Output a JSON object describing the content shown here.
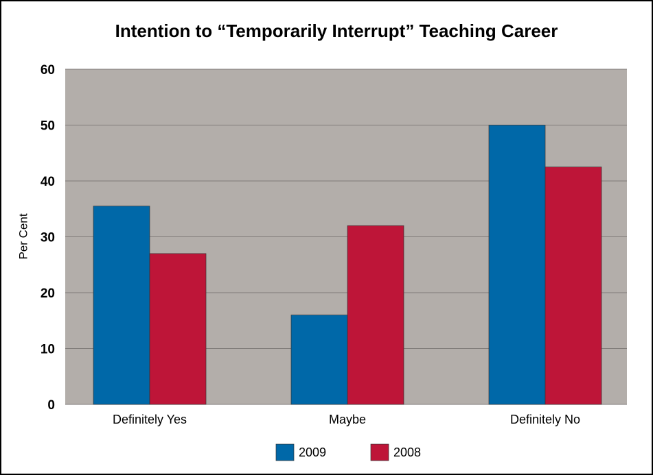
{
  "chart_data": {
    "type": "bar",
    "title": "Intention to “Temporarily Interrupt” Teaching Career",
    "ylabel": "Per Cent",
    "categories": [
      "Definitely Yes",
      "Maybe",
      "Definitely No"
    ],
    "series": [
      {
        "name": "2009",
        "color": "#0068a8",
        "values": [
          35.5,
          16,
          50
        ]
      },
      {
        "name": "2008",
        "color": "#be1538",
        "values": [
          27,
          32,
          42.5
        ]
      }
    ],
    "ylim": [
      0,
      60
    ],
    "yticks": [
      0,
      10,
      20,
      30,
      40,
      50,
      60
    ],
    "grid": true,
    "legend": "bottom"
  }
}
